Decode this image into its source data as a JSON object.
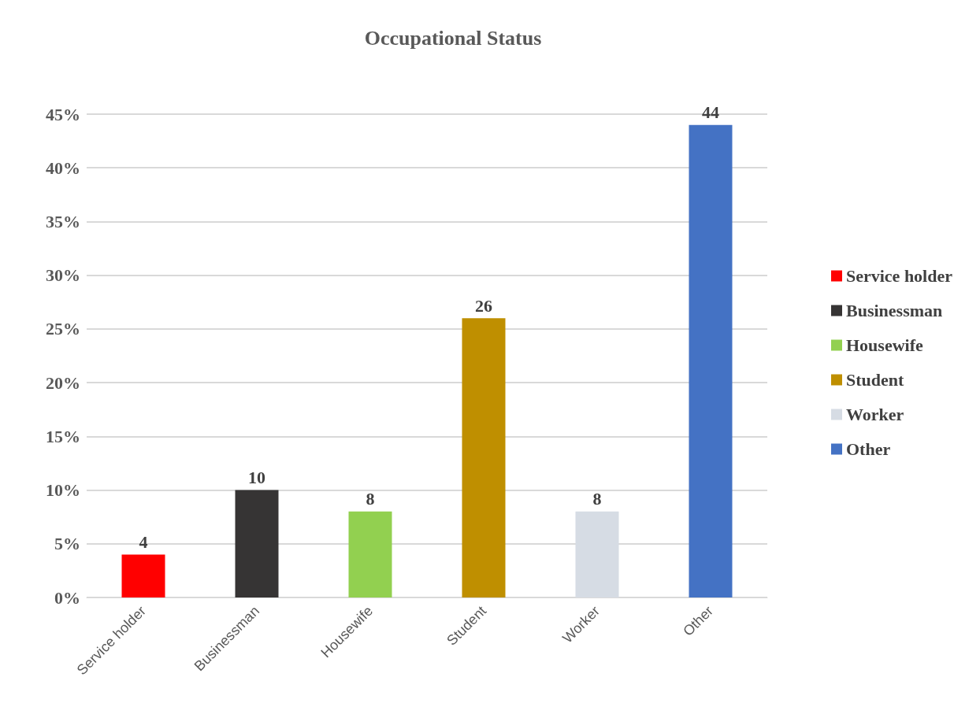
{
  "chart_data": {
    "type": "bar",
    "title": "Occupational Status",
    "categories": [
      "Service holder",
      "Businessman",
      "Housewife",
      "Student",
      "Worker",
      "Other"
    ],
    "series": [
      {
        "name": "Service holder",
        "color": "#ff0000",
        "values": [
          4,
          null,
          null,
          null,
          null,
          null
        ]
      },
      {
        "name": "Businessman",
        "color": "#363434",
        "values": [
          null,
          10,
          null,
          null,
          null,
          null
        ]
      },
      {
        "name": "Housewife",
        "color": "#92d050",
        "values": [
          null,
          null,
          8,
          null,
          null,
          null
        ]
      },
      {
        "name": "Student",
        "color": "#bf8f00",
        "values": [
          null,
          null,
          null,
          26,
          null,
          null
        ]
      },
      {
        "name": "Worker",
        "color": "#d6dce4",
        "values": [
          null,
          null,
          null,
          null,
          8,
          null
        ]
      },
      {
        "name": "Other",
        "color": "#4472c4",
        "values": [
          null,
          null,
          null,
          null,
          null,
          44
        ]
      }
    ],
    "ylim": [
      0,
      45
    ],
    "yticks": [
      {
        "value": 0,
        "label": "0%"
      },
      {
        "value": 5,
        "label": "5%"
      },
      {
        "value": 10,
        "label": "10%"
      },
      {
        "value": 15,
        "label": "15%"
      },
      {
        "value": 20,
        "label": "20%"
      },
      {
        "value": 25,
        "label": "25%"
      },
      {
        "value": 30,
        "label": "30%"
      },
      {
        "value": 35,
        "label": "35%"
      },
      {
        "value": 40,
        "label": "40%"
      },
      {
        "value": 45,
        "label": "45%"
      }
    ],
    "grid": "y",
    "legend": "right",
    "data_labels": true
  }
}
